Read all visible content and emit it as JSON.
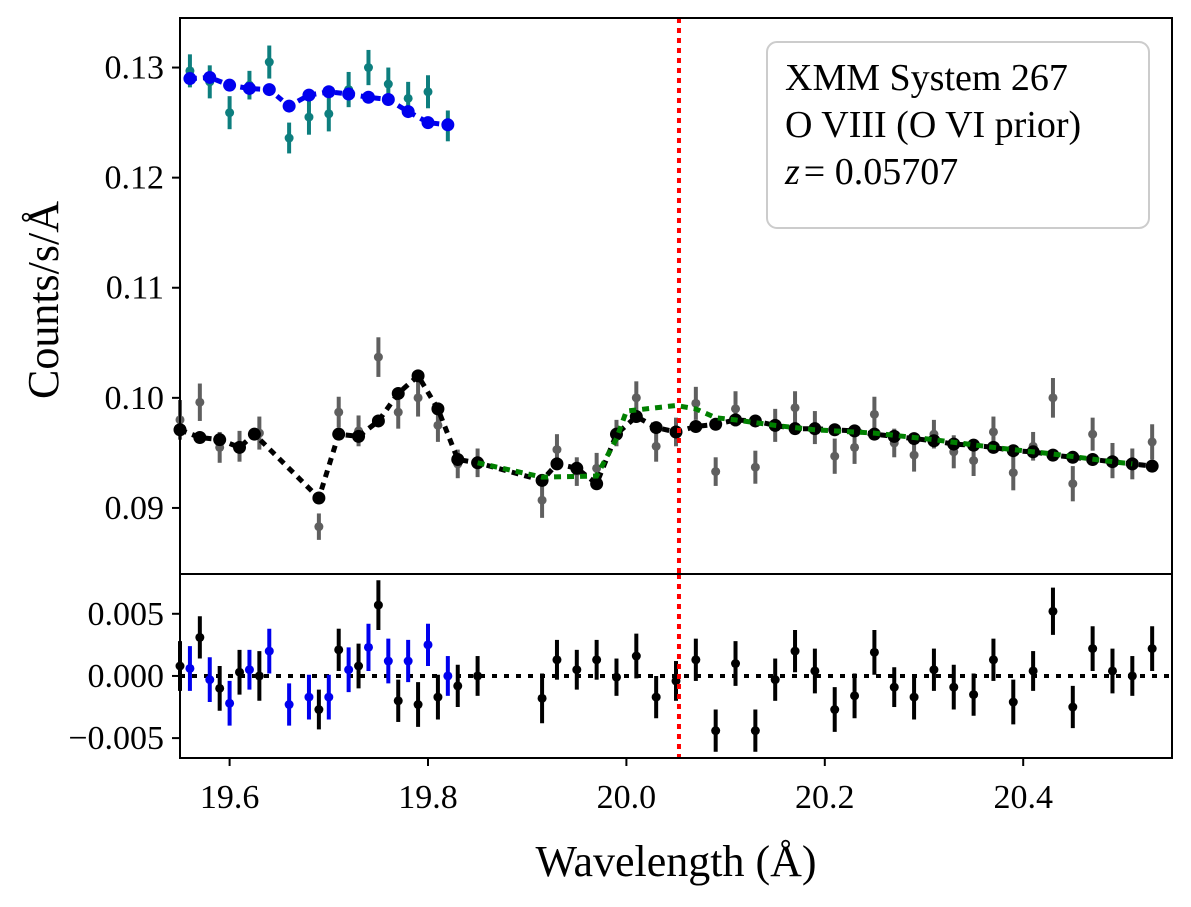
{
  "chart_data": [
    {
      "type": "scatter",
      "panel": "main",
      "xlim": [
        19.55,
        20.55
      ],
      "ylim": [
        0.084,
        0.1345
      ],
      "xlabel": "",
      "ylabel": "Counts/s/Å",
      "yticks": [
        0.09,
        0.1,
        0.11,
        0.12,
        0.13
      ],
      "ytick_labels": [
        "0.09",
        "0.10",
        "0.11",
        "0.12",
        "0.13"
      ],
      "grid": false,
      "legend": {
        "location": "top-right",
        "lines": [
          "XMM System 267",
          "O VIII (O VI prior)"
        ],
        "redshift_symbol": "z",
        "redshift_value": "= 0.05707"
      },
      "vline": {
        "x": 20.053,
        "color": "#ff0000",
        "style": "dotted"
      },
      "colors": {
        "data_dark": "#5f5f5f",
        "data_teal": "#0d7e7e",
        "model_black": "#000000",
        "model_blue": "#0000ee",
        "model_green": "#008000"
      },
      "series": [
        {
          "role": "data-black",
          "color_key": "data_dark",
          "points": [
            [
              19.55,
              0.098,
              0.0018
            ],
            [
              19.57,
              0.0996,
              0.0017
            ],
            [
              19.59,
              0.0955,
              0.0014
            ],
            [
              19.61,
              0.0956,
              0.0014
            ],
            [
              19.63,
              0.0968,
              0.0015
            ],
            [
              19.69,
              0.0883,
              0.0012
            ],
            [
              19.71,
              0.0987,
              0.0014
            ],
            [
              19.73,
              0.097,
              0.0014
            ],
            [
              19.75,
              0.1037,
              0.0018
            ],
            [
              19.77,
              0.0987,
              0.0015
            ],
            [
              19.79,
              0.1,
              0.0017
            ],
            [
              19.81,
              0.0975,
              0.0015
            ],
            [
              19.83,
              0.094,
              0.0013
            ],
            [
              19.85,
              0.0941,
              0.0013
            ],
            [
              19.915,
              0.0907,
              0.0016
            ],
            [
              19.93,
              0.0953,
              0.0014
            ],
            [
              19.95,
              0.0933,
              0.0013
            ],
            [
              19.97,
              0.0936,
              0.0014
            ],
            [
              19.99,
              0.0968,
              0.0012
            ],
            [
              20.01,
              0.1,
              0.0015
            ],
            [
              20.03,
              0.0956,
              0.0014
            ],
            [
              20.05,
              0.0969,
              0.0013
            ],
            [
              20.07,
              0.0995,
              0.0015
            ],
            [
              20.09,
              0.0933,
              0.0013
            ],
            [
              20.11,
              0.099,
              0.0016
            ],
            [
              20.13,
              0.0937,
              0.0015
            ],
            [
              20.15,
              0.0975,
              0.0015
            ],
            [
              20.17,
              0.0991,
              0.0015
            ],
            [
              20.19,
              0.0973,
              0.0015
            ],
            [
              20.21,
              0.0947,
              0.0016
            ],
            [
              20.23,
              0.0955,
              0.0015
            ],
            [
              20.25,
              0.0985,
              0.0016
            ],
            [
              20.27,
              0.0959,
              0.0013
            ],
            [
              20.29,
              0.0948,
              0.0015
            ],
            [
              20.31,
              0.0967,
              0.0013
            ],
            [
              20.33,
              0.0951,
              0.0015
            ],
            [
              20.35,
              0.0943,
              0.0014
            ],
            [
              20.37,
              0.0969,
              0.0014
            ],
            [
              20.39,
              0.0932,
              0.0016
            ],
            [
              20.41,
              0.0956,
              0.0013
            ],
            [
              20.43,
              0.1,
              0.0018
            ],
            [
              20.45,
              0.0922,
              0.0016
            ],
            [
              20.47,
              0.0967,
              0.0015
            ],
            [
              20.49,
              0.0943,
              0.0016
            ],
            [
              20.51,
              0.094,
              0.0014
            ],
            [
              20.53,
              0.096,
              0.0016
            ]
          ]
        },
        {
          "role": "data-teal",
          "color_key": "data_teal",
          "points": [
            [
              19.56,
              0.1297,
              0.0015
            ],
            [
              19.58,
              0.1287,
              0.0015
            ],
            [
              19.6,
              0.1259,
              0.0015
            ],
            [
              19.62,
              0.1284,
              0.0013
            ],
            [
              19.64,
              0.1305,
              0.0015
            ],
            [
              19.66,
              0.1236,
              0.0014
            ],
            [
              19.68,
              0.1255,
              0.0016
            ],
            [
              19.7,
              0.1258,
              0.0016
            ],
            [
              19.72,
              0.128,
              0.0016
            ],
            [
              19.74,
              0.13,
              0.0016
            ],
            [
              19.76,
              0.1285,
              0.0015
            ],
            [
              19.78,
              0.1272,
              0.0015
            ],
            [
              19.8,
              0.1278,
              0.0015
            ],
            [
              19.82,
              0.1247,
              0.0014
            ]
          ]
        }
      ],
      "models": [
        {
          "role": "model-black",
          "color_key": "model_black",
          "points": [
            [
              19.55,
              0.0971
            ],
            [
              19.57,
              0.0964
            ],
            [
              19.59,
              0.0962
            ],
            [
              19.61,
              0.0955
            ],
            [
              19.625,
              0.0967
            ],
            [
              19.69,
              0.0909
            ],
            [
              19.71,
              0.0967
            ],
            [
              19.73,
              0.0965
            ],
            [
              19.75,
              0.0979
            ],
            [
              19.77,
              0.1004
            ],
            [
              19.79,
              0.102
            ],
            [
              19.81,
              0.099
            ],
            [
              19.83,
              0.0944
            ],
            [
              19.85,
              0.0941
            ],
            [
              19.915,
              0.0925
            ],
            [
              19.93,
              0.094
            ],
            [
              19.95,
              0.0936
            ],
            [
              19.97,
              0.0922
            ],
            [
              19.99,
              0.0967
            ],
            [
              20.01,
              0.0983
            ],
            [
              20.03,
              0.0973
            ],
            [
              20.05,
              0.0969
            ],
            [
              20.07,
              0.0974
            ],
            [
              20.09,
              0.0976
            ],
            [
              20.11,
              0.098
            ],
            [
              20.13,
              0.0979
            ],
            [
              20.15,
              0.0975
            ],
            [
              20.17,
              0.0972
            ],
            [
              20.19,
              0.0972
            ],
            [
              20.21,
              0.0971
            ],
            [
              20.23,
              0.097
            ],
            [
              20.25,
              0.0967
            ],
            [
              20.27,
              0.0965
            ],
            [
              20.29,
              0.0963
            ],
            [
              20.31,
              0.0961
            ],
            [
              20.33,
              0.0958
            ],
            [
              20.35,
              0.0957
            ],
            [
              20.37,
              0.0955
            ],
            [
              20.39,
              0.0952
            ],
            [
              20.41,
              0.0951
            ],
            [
              20.43,
              0.0948
            ],
            [
              20.45,
              0.0946
            ],
            [
              20.47,
              0.0944
            ],
            [
              20.49,
              0.0942
            ],
            [
              20.51,
              0.094
            ],
            [
              20.53,
              0.0938
            ]
          ]
        },
        {
          "role": "model-green",
          "color_key": "model_green",
          "points": [
            [
              19.85,
              0.0941
            ],
            [
              19.915,
              0.0928
            ],
            [
              19.97,
              0.0929
            ],
            [
              19.99,
              0.0963
            ],
            [
              20.0,
              0.0988
            ],
            [
              20.05,
              0.0993
            ],
            [
              20.07,
              0.099
            ],
            [
              20.09,
              0.0982
            ],
            [
              20.11,
              0.098
            ],
            [
              20.15,
              0.0975
            ],
            [
              20.19,
              0.0971
            ],
            [
              20.25,
              0.0968
            ],
            [
              20.31,
              0.0962
            ],
            [
              20.37,
              0.0955
            ],
            [
              20.43,
              0.0949
            ],
            [
              20.49,
              0.0942
            ],
            [
              20.51,
              0.094
            ]
          ]
        },
        {
          "role": "model-blue",
          "color_key": "model_blue",
          "points": [
            [
              19.56,
              0.129
            ],
            [
              19.58,
              0.1291
            ],
            [
              19.6,
              0.1284
            ],
            [
              19.62,
              0.1281
            ],
            [
              19.64,
              0.128
            ],
            [
              19.66,
              0.1265
            ],
            [
              19.68,
              0.1275
            ],
            [
              19.7,
              0.1278
            ],
            [
              19.72,
              0.1276
            ],
            [
              19.74,
              0.1273
            ],
            [
              19.76,
              0.1271
            ],
            [
              19.78,
              0.126
            ],
            [
              19.8,
              0.125
            ],
            [
              19.82,
              0.1248
            ]
          ]
        }
      ]
    },
    {
      "type": "scatter",
      "panel": "residuals",
      "xlim": [
        19.55,
        20.55
      ],
      "ylim": [
        -0.0066,
        0.0082
      ],
      "xlabel": "Wavelength (Å)",
      "ylabel": "",
      "xticks": [
        19.6,
        19.8,
        20.0,
        20.2,
        20.4
      ],
      "xtick_labels": [
        "19.6",
        "19.8",
        "20.0",
        "20.2",
        "20.4"
      ],
      "yticks": [
        -0.005,
        0.0,
        0.005
      ],
      "ytick_labels": [
        "−0.005",
        "0.000",
        "0.005"
      ],
      "grid": false,
      "hline": {
        "y": 0.0,
        "color": "#000000",
        "style": "dotted"
      },
      "vline": {
        "x": 20.053,
        "color": "#ff0000",
        "style": "dotted"
      },
      "colors": {
        "black": "#000000",
        "blue": "#0000ee"
      },
      "series": [
        {
          "role": "resid-black",
          "color_key": "black",
          "points": [
            [
              19.55,
              0.0008,
              0.002
            ],
            [
              19.57,
              0.0031,
              0.0017
            ],
            [
              19.59,
              -0.001,
              0.0018
            ],
            [
              19.61,
              0.0003,
              0.0018
            ],
            [
              19.63,
              0.0,
              0.002
            ],
            [
              19.69,
              -0.0027,
              0.0016
            ],
            [
              19.71,
              0.0021,
              0.0017
            ],
            [
              19.73,
              0.0008,
              0.0018
            ],
            [
              19.75,
              0.0057,
              0.002
            ],
            [
              19.77,
              -0.002,
              0.0017
            ],
            [
              19.79,
              -0.0023,
              0.0018
            ],
            [
              19.81,
              -0.0017,
              0.0018
            ],
            [
              19.83,
              -0.0008,
              0.0017
            ],
            [
              19.85,
              0.0,
              0.0016
            ],
            [
              19.915,
              -0.0018,
              0.002
            ],
            [
              19.93,
              0.0013,
              0.0016
            ],
            [
              19.95,
              0.0005,
              0.0016
            ],
            [
              19.97,
              0.0013,
              0.0016
            ],
            [
              19.99,
              -0.0001,
              0.0015
            ],
            [
              20.01,
              0.0016,
              0.0018
            ],
            [
              20.03,
              -0.0017,
              0.0017
            ],
            [
              20.05,
              -0.0004,
              0.0016
            ],
            [
              20.07,
              0.0013,
              0.0017
            ],
            [
              20.09,
              -0.0044,
              0.0017
            ],
            [
              20.11,
              0.001,
              0.0018
            ],
            [
              20.13,
              -0.0044,
              0.0017
            ],
            [
              20.15,
              -0.0003,
              0.0017
            ],
            [
              20.17,
              0.002,
              0.0017
            ],
            [
              20.19,
              0.0004,
              0.0018
            ],
            [
              20.21,
              -0.0027,
              0.0018
            ],
            [
              20.23,
              -0.0016,
              0.0018
            ],
            [
              20.25,
              0.0019,
              0.0018
            ],
            [
              20.27,
              -0.0009,
              0.0016
            ],
            [
              20.29,
              -0.0017,
              0.0018
            ],
            [
              20.31,
              0.0005,
              0.0017
            ],
            [
              20.33,
              -0.0009,
              0.0018
            ],
            [
              20.35,
              -0.0015,
              0.0017
            ],
            [
              20.37,
              0.0013,
              0.0017
            ],
            [
              20.39,
              -0.0021,
              0.0018
            ],
            [
              20.41,
              0.0004,
              0.0016
            ],
            [
              20.43,
              0.0052,
              0.0019
            ],
            [
              20.45,
              -0.0025,
              0.0017
            ],
            [
              20.47,
              0.0022,
              0.0018
            ],
            [
              20.49,
              0.0004,
              0.0018
            ],
            [
              20.51,
              0.0,
              0.0016
            ],
            [
              20.53,
              0.0022,
              0.0018
            ]
          ]
        },
        {
          "role": "resid-blue",
          "color_key": "blue",
          "points": [
            [
              19.56,
              0.0006,
              0.0018
            ],
            [
              19.58,
              -0.0003,
              0.0018
            ],
            [
              19.6,
              -0.0022,
              0.0018
            ],
            [
              19.62,
              0.0005,
              0.0016
            ],
            [
              19.64,
              0.002,
              0.0018
            ],
            [
              19.66,
              -0.0023,
              0.0017
            ],
            [
              19.68,
              -0.0017,
              0.0018
            ],
            [
              19.7,
              -0.0017,
              0.0018
            ],
            [
              19.72,
              0.0005,
              0.0018
            ],
            [
              19.74,
              0.0023,
              0.0019
            ],
            [
              19.76,
              0.0012,
              0.0018
            ],
            [
              19.78,
              0.0012,
              0.0017
            ],
            [
              19.8,
              0.0025,
              0.0017
            ],
            [
              19.82,
              0.0,
              0.0016
            ]
          ]
        }
      ]
    }
  ]
}
